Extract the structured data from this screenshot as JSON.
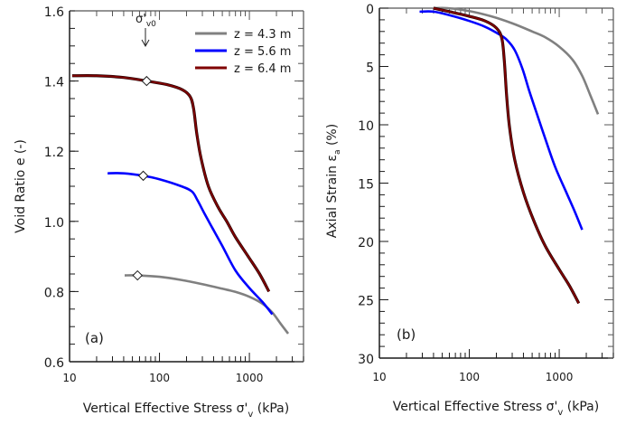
{
  "chart_data": [
    {
      "type": "line",
      "panel_label": "(a)",
      "title": "",
      "xlabel": "Vertical Effective Stress σ'v (kPa)",
      "xlabel_main": "Vertical Effective Stress σ'",
      "xlabel_sub": "v",
      "xlabel_tail": " (kPa)",
      "ylabel": "Void Ratio e (-)",
      "xscale": "log",
      "xlim": [
        10,
        4000
      ],
      "ylim": [
        0.6,
        1.6
      ],
      "yinverted": false,
      "xticks": [
        10,
        100,
        1000
      ],
      "xtick_labels": [
        "10",
        "100",
        "1000"
      ],
      "yticks": [
        0.6,
        0.8,
        1.0,
        1.2,
        1.4,
        1.6
      ],
      "ytick_labels": [
        "0.6",
        "0.8",
        "1.0",
        "1.2",
        "1.4",
        "1.6"
      ],
      "grid": false,
      "legend_position": "top-right",
      "annotation": {
        "text_main": "σ'",
        "text_sub": "v0",
        "x": 72,
        "y": 1.4
      },
      "series": [
        {
          "name": "z = 4.3 m",
          "color": "#808080",
          "x": [
            41,
            57,
            100,
            175,
            300,
            500,
            700,
            1000,
            1400,
            1800,
            2200,
            2700
          ],
          "y": [
            0.846,
            0.846,
            0.842,
            0.833,
            0.821,
            0.808,
            0.799,
            0.785,
            0.765,
            0.74,
            0.71,
            0.68
          ],
          "marker": {
            "x": 57,
            "y": 0.846
          }
        },
        {
          "name": "z = 5.6 m",
          "color": "#0000ff",
          "x": [
            26.5,
            40,
            66,
            100,
            175,
            230,
            265,
            320,
            390,
            500,
            700,
            1000,
            1400,
            1800
          ],
          "y": [
            1.137,
            1.137,
            1.13,
            1.12,
            1.1,
            1.085,
            1.06,
            1.02,
            0.98,
            0.93,
            0.86,
            0.81,
            0.77,
            0.735
          ],
          "marker": {
            "x": 66,
            "y": 1.13
          }
        },
        {
          "name": "z = 6.4 m",
          "color": "#7f0000",
          "x": [
            10.7,
            20,
            40,
            72,
            120,
            180,
            220,
            240,
            260,
            290,
            350,
            450,
            560,
            700,
            970,
            1300,
            1650
          ],
          "y": [
            1.415,
            1.415,
            1.41,
            1.4,
            1.39,
            1.375,
            1.355,
            1.32,
            1.25,
            1.18,
            1.1,
            1.04,
            1.0,
            0.955,
            0.9,
            0.85,
            0.8
          ],
          "marker": {
            "x": 72,
            "y": 1.4
          }
        }
      ]
    },
    {
      "type": "line",
      "panel_label": "(b)",
      "title": "",
      "xlabel": "Vertical Effective Stress σ'v (kPa)",
      "xlabel_main": "Vertical Effective Stress σ'",
      "xlabel_sub": "v",
      "xlabel_tail": " (kPa)",
      "ylabel": "Axial Strain εa (%)",
      "ylabel_main": "Axial Strain ε",
      "ylabel_sub": "a",
      "ylabel_tail": " (%)",
      "xscale": "log",
      "xlim": [
        10,
        4000
      ],
      "ylim": [
        0,
        30
      ],
      "yinverted": true,
      "xticks": [
        10,
        100,
        1000
      ],
      "xtick_labels": [
        "10",
        "100",
        "1000"
      ],
      "yticks": [
        0,
        5,
        10,
        15,
        20,
        25,
        30
      ],
      "ytick_labels": [
        "0",
        "5",
        "10",
        "15",
        "20",
        "25",
        "30"
      ],
      "grid": false,
      "series": [
        {
          "name": "z = 4.3 m",
          "color": "#808080",
          "x": [
            41,
            57,
            100,
            175,
            300,
            500,
            700,
            1000,
            1400,
            1800,
            2200,
            2700
          ],
          "y": [
            0.0,
            0.0,
            0.25,
            0.7,
            1.3,
            2.0,
            2.5,
            3.3,
            4.4,
            5.8,
            7.4,
            9.1
          ]
        },
        {
          "name": "z = 5.6 m",
          "color": "#0000ff",
          "x": [
            28,
            40,
            60,
            100,
            150,
            210,
            260,
            320,
            390,
            460,
            550,
            700,
            900,
            1200,
            1500,
            1800
          ],
          "y": [
            0.3,
            0.3,
            0.6,
            1.1,
            1.6,
            2.2,
            2.7,
            3.6,
            5.2,
            7.0,
            8.8,
            11.2,
            13.6,
            15.8,
            17.5,
            19.0
          ]
        },
        {
          "name": "z = 6.4 m",
          "color": "#7f0000",
          "x": [
            40,
            60,
            100,
            150,
            200,
            230,
            245,
            260,
            280,
            320,
            400,
            520,
            700,
            1000,
            1300,
            1650
          ],
          "y": [
            0.0,
            0.3,
            0.7,
            1.1,
            1.7,
            2.6,
            4.5,
            7.5,
            10.2,
            13.0,
            15.8,
            18.2,
            20.4,
            22.4,
            23.8,
            25.3
          ]
        }
      ]
    }
  ]
}
